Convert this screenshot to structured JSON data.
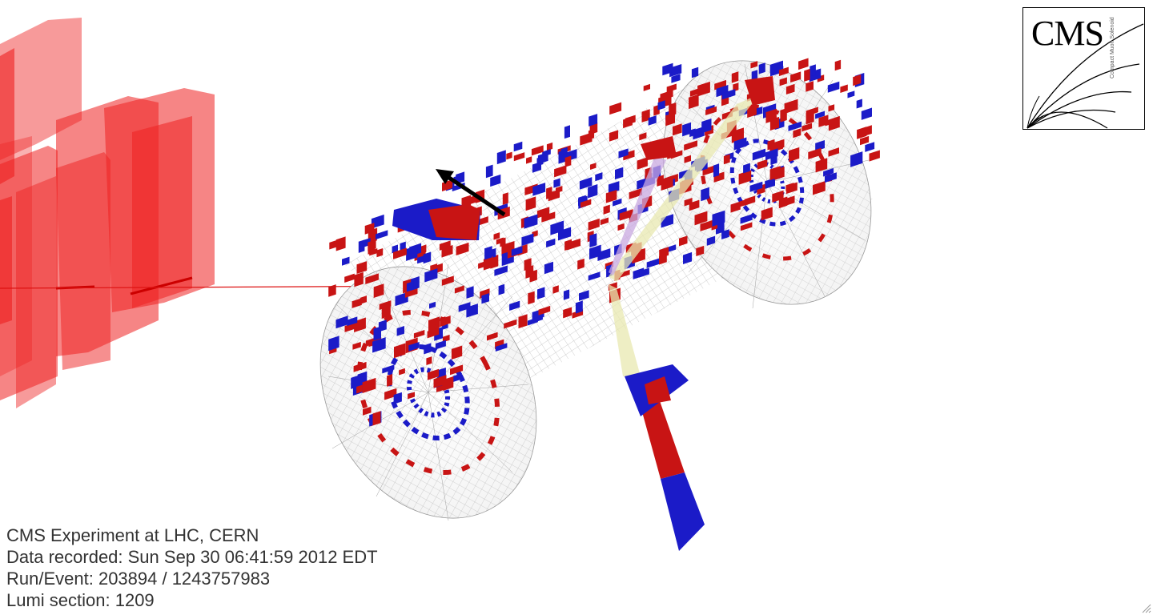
{
  "event_info": {
    "line1": "CMS Experiment at LHC, CERN",
    "line2": "Data recorded: Sun Sep 30 06:41:59 2012 EDT",
    "line3": "Run/Event: 203894 / 1243757983",
    "line4": "Lumi section: 1209"
  },
  "logo": {
    "text": "CMS",
    "subtitle": "Compact Muon Solenoid"
  },
  "colors": {
    "hcal_red": "#c81414",
    "ecal_blue": "#1b1bc8",
    "muon_chamber": "#ee2020",
    "track": "#dd1111",
    "jet_cone": "#e8e8b0",
    "photon_cone": "#c8a8e0",
    "met_arrow": "#000000",
    "mesh": "#9a9a9a"
  },
  "icons": {
    "resize": "resize-grip-icon"
  }
}
